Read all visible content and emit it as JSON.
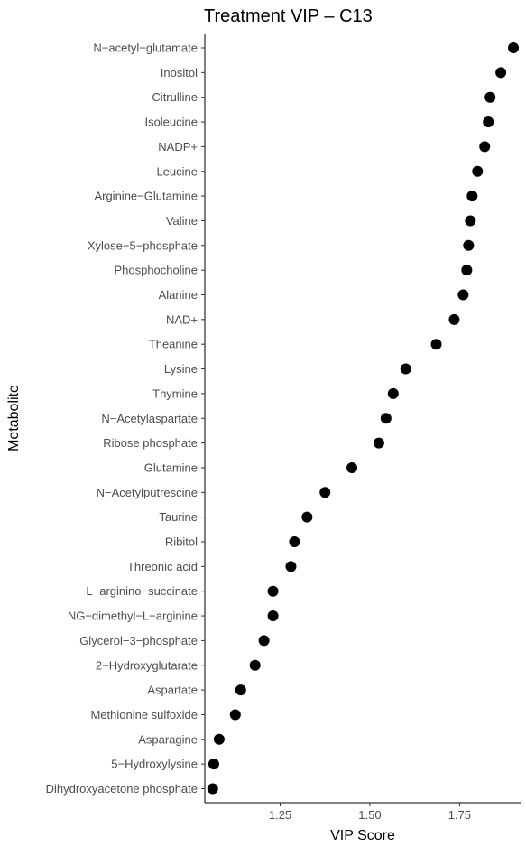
{
  "chart_data": {
    "type": "scatter",
    "title": "Treatment VIP – C13",
    "xlabel": "VIP Score",
    "ylabel": "Metabolite",
    "xlim": [
      1.04,
      1.92
    ],
    "x_ticks": [
      1.25,
      1.5,
      1.75
    ],
    "x_tick_labels": [
      "1.25",
      "1.50",
      "1.75"
    ],
    "grid": false,
    "point_color": "#000000",
    "points": [
      {
        "label": "N−acetyl−glutamate",
        "value": 1.9
      },
      {
        "label": "Inositol",
        "value": 1.865
      },
      {
        "label": "Citrulline",
        "value": 1.835
      },
      {
        "label": "Isoleucine",
        "value": 1.83
      },
      {
        "label": "NADP+",
        "value": 1.82
      },
      {
        "label": "Leucine",
        "value": 1.8
      },
      {
        "label": "Arginine−Glutamine",
        "value": 1.785
      },
      {
        "label": "Valine",
        "value": 1.78
      },
      {
        "label": "Xylose−5−phosphate",
        "value": 1.775
      },
      {
        "label": "Phosphocholine",
        "value": 1.77
      },
      {
        "label": "Alanine",
        "value": 1.76
      },
      {
        "label": "NAD+",
        "value": 1.735
      },
      {
        "label": "Theanine",
        "value": 1.685
      },
      {
        "label": "Lysine",
        "value": 1.6
      },
      {
        "label": "Thymine",
        "value": 1.565
      },
      {
        "label": "N−Acetylaspartate",
        "value": 1.545
      },
      {
        "label": "Ribose phosphate",
        "value": 1.525
      },
      {
        "label": "Glutamine",
        "value": 1.45
      },
      {
        "label": "N−Acetylputrescine",
        "value": 1.375
      },
      {
        "label": "Taurine",
        "value": 1.325
      },
      {
        "label": "Ribitol",
        "value": 1.29
      },
      {
        "label": "Threonic acid",
        "value": 1.28
      },
      {
        "label": "L−arginino−succinate",
        "value": 1.23
      },
      {
        "label": "NG−dimethyl−L−arginine",
        "value": 1.23
      },
      {
        "label": "Glycerol−3−phosphate",
        "value": 1.205
      },
      {
        "label": "2−Hydroxyglutarate",
        "value": 1.18
      },
      {
        "label": "Aspartate",
        "value": 1.14
      },
      {
        "label": "Methionine sulfoxide",
        "value": 1.125
      },
      {
        "label": "Asparagine",
        "value": 1.08
      },
      {
        "label": "5−Hydroxylysine",
        "value": 1.065
      },
      {
        "label": "Dihydroxyacetone phosphate",
        "value": 1.062
      }
    ]
  }
}
